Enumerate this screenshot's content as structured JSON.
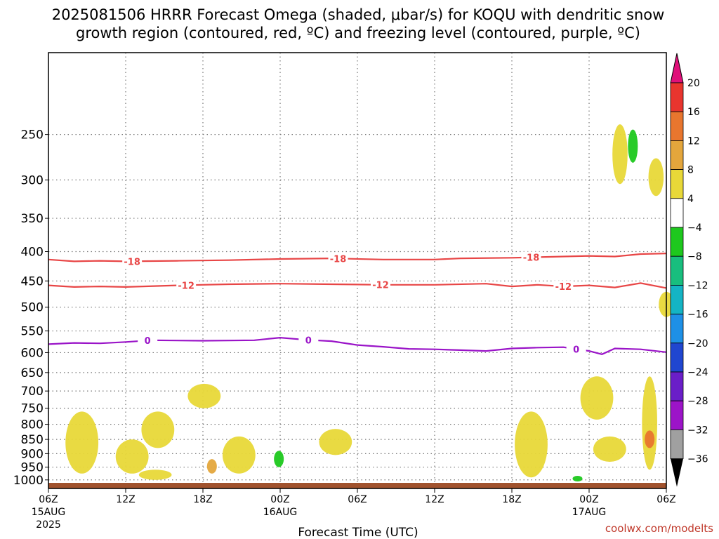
{
  "title_line1": "2025081506 HRRR Forecast Omega (shaded, μbar/s) for KOQU with dendritic snow",
  "title_line2": "growth region (contoured, red, ºC) and freezing level (contoured, purple, ºC)",
  "credit": "coolwx.com/modelts",
  "chart_data": {
    "type": "time-height",
    "title": "2025081506 HRRR Forecast Omega (shaded, μbar/s) for KOQU with dendritic snow growth region (contoured, red, ºC) and freezing level (contoured, purple, ºC)",
    "xlabel": "Forecast Time (UTC)",
    "ylabel": "",
    "x_ticks": [
      {
        "hour": 0,
        "label": "06Z",
        "sub": [
          "15AUG",
          "2025"
        ]
      },
      {
        "hour": 6,
        "label": "12Z",
        "sub": []
      },
      {
        "hour": 12,
        "label": "18Z",
        "sub": []
      },
      {
        "hour": 18,
        "label": "00Z",
        "sub": [
          "16AUG"
        ]
      },
      {
        "hour": 24,
        "label": "06Z",
        "sub": []
      },
      {
        "hour": 30,
        "label": "12Z",
        "sub": []
      },
      {
        "hour": 36,
        "label": "18Z",
        "sub": []
      },
      {
        "hour": 42,
        "label": "00Z",
        "sub": [
          "17AUG"
        ]
      },
      {
        "hour": 48,
        "label": "06Z",
        "sub": []
      }
    ],
    "xlim": [
      0,
      48
    ],
    "ylim_hpa": [
      1035,
      180
    ],
    "y_ticks": [
      250,
      300,
      350,
      400,
      450,
      500,
      550,
      600,
      650,
      700,
      750,
      800,
      850,
      900,
      950,
      1000
    ],
    "y_scale": "log",
    "grid": true,
    "colorbar": {
      "labels": [
        "20",
        "16",
        "12",
        "8",
        "4",
        "−4",
        "−8",
        "−12",
        "−16",
        "−20",
        "−24",
        "−28",
        "−32",
        "−36"
      ],
      "bins": [
        {
          "range": "16 to 20",
          "color": "#e8352e"
        },
        {
          "range": "12 to 16",
          "color": "#e8762e"
        },
        {
          "range": "8 to 12",
          "color": "#e4a63c"
        },
        {
          "range": "4 to 8",
          "color": "#e8d838"
        },
        {
          "range": "-4 to 4",
          "color": "#ffffff"
        },
        {
          "range": "-8 to -4",
          "color": "#1ec81e"
        },
        {
          "range": "-12 to -8",
          "color": "#18be7e"
        },
        {
          "range": "-16 to -12",
          "color": "#14b4c4"
        },
        {
          "range": "-20 to -16",
          "color": "#1e90e6"
        },
        {
          "range": "-24 to -20",
          "color": "#2046d0"
        },
        {
          "range": "-28 to -24",
          "color": "#6a1ec8"
        },
        {
          "range": "-32 to -28",
          "color": "#9c14c8"
        },
        {
          "range": "-36 to -32",
          "color": "#a0a0a0"
        }
      ],
      "top_arrow_color": "#e0107a",
      "bottom_arrow_color": "#000000"
    },
    "contours": [
      {
        "name": "-18",
        "color": "#e84646",
        "points": [
          [
            0,
            413
          ],
          [
            2,
            416
          ],
          [
            4,
            415
          ],
          [
            6,
            416
          ],
          [
            10,
            415
          ],
          [
            14,
            414
          ],
          [
            18,
            412
          ],
          [
            22,
            411
          ],
          [
            26,
            413
          ],
          [
            30,
            413
          ],
          [
            32,
            411
          ],
          [
            36,
            410
          ],
          [
            40,
            408
          ],
          [
            42,
            407
          ],
          [
            44,
            408
          ],
          [
            46,
            404
          ],
          [
            48,
            403
          ]
        ],
        "label_hours": [
          6.5,
          22.5,
          37.5
        ]
      },
      {
        "name": "-12",
        "color": "#e84646",
        "points": [
          [
            0,
            458
          ],
          [
            2,
            461
          ],
          [
            4,
            460
          ],
          [
            6,
            461
          ],
          [
            10,
            458
          ],
          [
            14,
            456
          ],
          [
            18,
            455
          ],
          [
            22,
            456
          ],
          [
            26,
            457
          ],
          [
            30,
            457
          ],
          [
            34,
            455
          ],
          [
            36,
            460
          ],
          [
            38,
            457
          ],
          [
            40,
            460
          ],
          [
            42,
            458
          ],
          [
            44,
            462
          ],
          [
            46,
            454
          ],
          [
            48,
            463
          ]
        ],
        "label_hours": [
          10.7,
          25.8,
          40
        ]
      },
      {
        "name": "0",
        "color": "#9a14c8",
        "points": [
          [
            0,
            580
          ],
          [
            2,
            577
          ],
          [
            4,
            578
          ],
          [
            6,
            575
          ],
          [
            8,
            571
          ],
          [
            12,
            572
          ],
          [
            16,
            571
          ],
          [
            18,
            565
          ],
          [
            20,
            570
          ],
          [
            22,
            573
          ],
          [
            24,
            582
          ],
          [
            26,
            586
          ],
          [
            28,
            591
          ],
          [
            30,
            592
          ],
          [
            32,
            594
          ],
          [
            34,
            596
          ],
          [
            36,
            590
          ],
          [
            38,
            588
          ],
          [
            40,
            587
          ],
          [
            42,
            596
          ],
          [
            43,
            604
          ],
          [
            44,
            590
          ],
          [
            46,
            592
          ],
          [
            48,
            599
          ]
        ],
        "label_hours": [
          7.7,
          20.2,
          41
        ]
      }
    ],
    "shaded_regions": [
      {
        "bin": "4 to 8",
        "center_hour": 2.6,
        "center_hpa": 915,
        "approx_extent": "06Z–10Z 15AUG, 760–975 hPa"
      },
      {
        "bin": "4 to 8",
        "center_hour": 6.5,
        "center_hpa": 930,
        "approx_extent": "08Z–12Z 15AUG, 850–975 hPa"
      },
      {
        "bin": "4 to 8",
        "center_hour": 8.5,
        "center_hpa": 830,
        "approx_extent": "14Z–16Z 15AUG, 760–880 hPa"
      },
      {
        "bin": "4 to 8",
        "center_hour": 8.3,
        "center_hpa": 985,
        "approx_extent": "13Z–17Z 15AUG, 960–1000 hPa"
      },
      {
        "bin": "4 to 8",
        "center_hour": 12.1,
        "center_hpa": 715,
        "approx_extent": "18Z 15AUG, 680–750 hPa"
      },
      {
        "bin": "4 to 8",
        "center_hour": 14.8,
        "center_hpa": 905,
        "approx_extent": "17Z–22Z 15AUG, 840–975 hPa"
      },
      {
        "bin": "8 to 12",
        "center_hour": 12.7,
        "center_hpa": 950,
        "approx_extent": "18Z–20Z 15AUG, 920–975 hPa"
      },
      {
        "bin": "-8 to -4",
        "center_hour": 17.9,
        "center_hpa": 920,
        "approx_extent": "00Z 16AUG, 890–950 hPa"
      },
      {
        "bin": "4 to 8",
        "center_hour": 22.3,
        "center_hpa": 865,
        "approx_extent": "03Z–05Z 16AUG, 815–905 hPa"
      },
      {
        "bin": "4 to 8",
        "center_hour": 37.5,
        "center_hpa": 940,
        "approx_extent": "15Z 16AUG–00Z 17AUG, 760–990 hPa"
      },
      {
        "bin": "-8 to -4",
        "center_hour": 41.1,
        "center_hpa": 995,
        "approx_extent": "23Z 16AUG, 990–1000 hPa"
      },
      {
        "bin": "4 to 8",
        "center_hour": 42.6,
        "center_hpa": 710,
        "approx_extent": "22Z–01Z 16–17AUG, 660–785 hPa"
      },
      {
        "bin": "4 to 8",
        "center_hour": 43.6,
        "center_hpa": 880,
        "approx_extent": "00Z–02Z 17AUG, 840–930 hPa"
      },
      {
        "bin": "4 to 8",
        "center_hour": 46.7,
        "center_hpa": 830,
        "approx_extent": "04Z–05Z 17AUG, 660–960 hPa"
      },
      {
        "bin": "12 to 16",
        "center_hour": 46.7,
        "center_hpa": 850,
        "approx_extent": "05Z 17AUG, 820–880 hPa"
      },
      {
        "bin": "4 to 8",
        "center_hour": 44.4,
        "center_hpa": 265,
        "approx_extent": "02Z 17AUG, 240–305 hPa"
      },
      {
        "bin": "-8 to -4",
        "center_hour": 45.4,
        "center_hpa": 255,
        "approx_extent": "03Z 17AUG, 245–280 hPa"
      },
      {
        "bin": "4 to 8",
        "center_hour": 47.2,
        "center_hpa": 295,
        "approx_extent": "05Z 17AUG, 275–320 hPa"
      },
      {
        "bin": "4 to 8",
        "center_hour": 48,
        "center_hpa": 490,
        "approx_extent": "06Z 17AUG, 470–520 hPa"
      }
    ],
    "terrain": {
      "color": "#a0522d",
      "surface_hpa": 1012
    }
  }
}
